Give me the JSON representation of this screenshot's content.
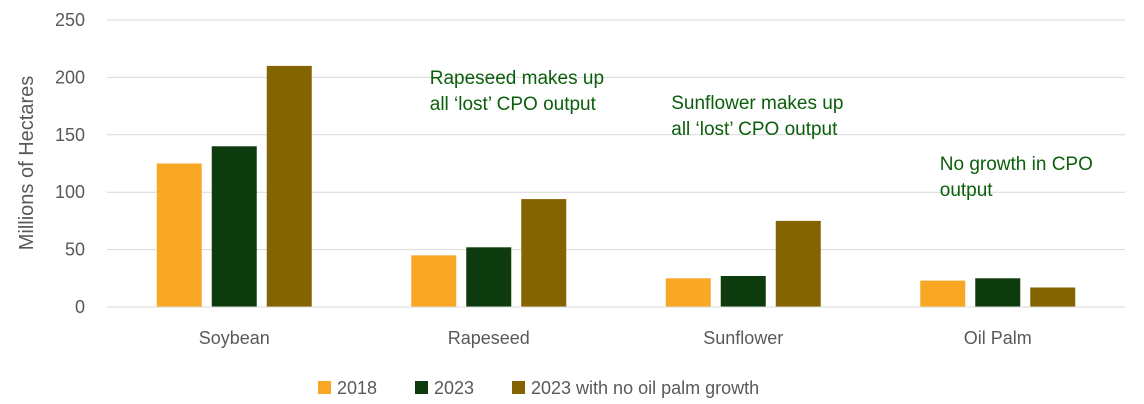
{
  "chart_data": {
    "type": "bar",
    "title": "",
    "xlabel": "",
    "ylabel": "Millions of Hectares",
    "ylim": [
      0,
      250
    ],
    "yticks": [
      0,
      50,
      100,
      150,
      200,
      250
    ],
    "grid": true,
    "legend_position": "bottom",
    "categories": [
      "Soybean",
      "Rapeseed",
      "Sunflower",
      "Oil Palm"
    ],
    "series": [
      {
        "name": "2018",
        "color": "#f9a825",
        "values": [
          125,
          45,
          25,
          23
        ]
      },
      {
        "name": "2023",
        "color": "#0d3b0d",
        "values": [
          140,
          52,
          27,
          25
        ]
      },
      {
        "name": "2023 with no oil palm growth",
        "color": "#846400",
        "values": [
          210,
          94,
          75,
          17
        ]
      }
    ],
    "annotations": [
      {
        "category": "Rapeseed",
        "lines": [
          "Rapeseed makes up",
          "all ‘lost’ CPO output"
        ]
      },
      {
        "category": "Sunflower",
        "lines": [
          "Sunflower makes up",
          "all ‘lost’ CPO output"
        ]
      },
      {
        "category": "Oil Palm",
        "lines": [
          "No growth in CPO",
          "output"
        ]
      }
    ]
  }
}
